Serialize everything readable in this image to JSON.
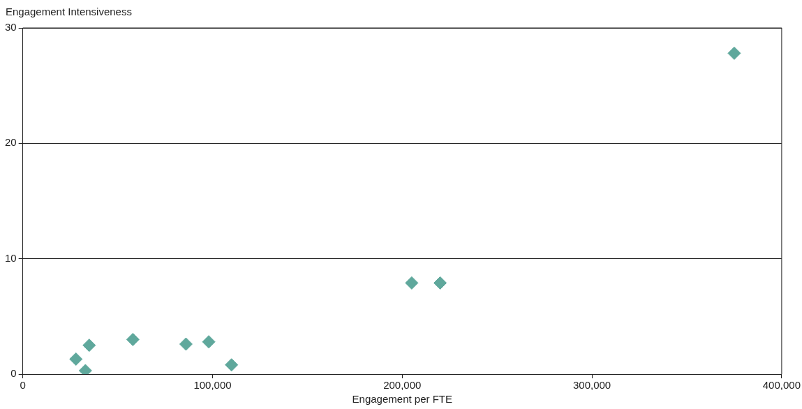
{
  "chart_data": {
    "type": "scatter",
    "xlabel": "Engagement per FTE",
    "ylabel": "Engagement Intensiveness",
    "x": [
      28000,
      33000,
      35000,
      58000,
      86000,
      98000,
      110000,
      205000,
      220000,
      375000
    ],
    "values": [
      1.3,
      0.3,
      2.5,
      3.0,
      2.6,
      2.8,
      0.8,
      7.9,
      7.9,
      27.8
    ],
    "color": "#5fa89c",
    "marker": "diamond",
    "xlim": [
      0,
      400000
    ],
    "xticks": [
      {
        "value": 0,
        "label": "0"
      },
      {
        "value": 100000,
        "label": "100,000"
      },
      {
        "value": 200000,
        "label": "200,000"
      },
      {
        "value": 300000,
        "label": "300,000"
      },
      {
        "value": 400000,
        "label": "400,000"
      }
    ],
    "ylim": [
      0,
      30
    ],
    "yticks": [
      0,
      10,
      20,
      30
    ],
    "grid": "y",
    "legend": false
  }
}
